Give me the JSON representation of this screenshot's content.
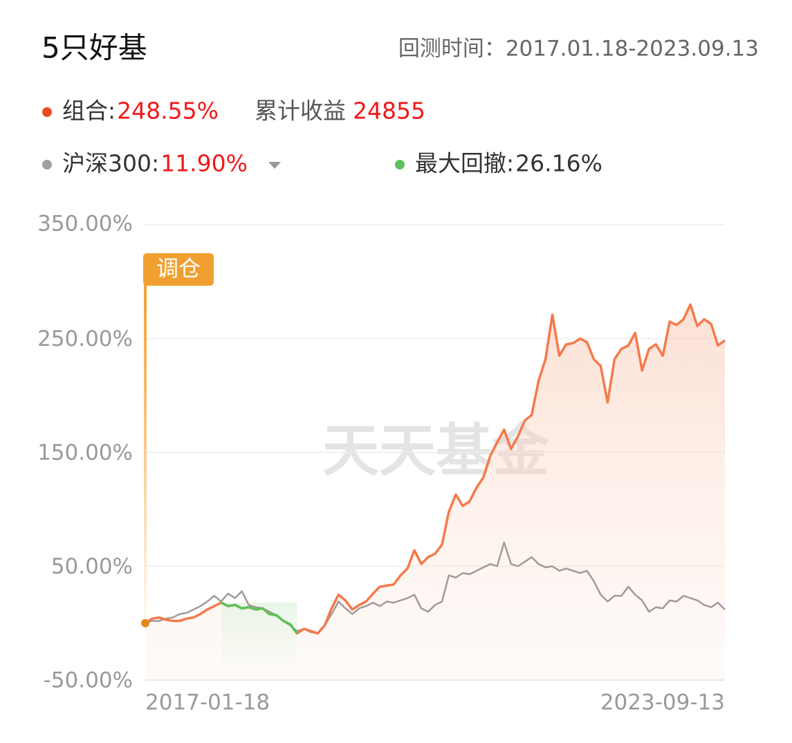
{
  "header": {
    "title": "5只好基",
    "backtest": "回测时间：2017.01.18-2023.09.13",
    "cumulative_label": "累计收益",
    "cumulative_value": "24855"
  },
  "chart_data": {
    "type": "line",
    "rebalance_label": "调仓",
    "watermark": "天天基金",
    "categories": [
      "2017-01-18",
      null,
      null,
      null,
      null,
      null,
      null,
      null,
      null,
      null,
      null,
      null,
      null,
      null,
      null,
      null,
      null,
      null,
      null,
      null,
      null,
      null,
      null,
      null,
      null,
      null,
      null,
      null,
      null,
      null,
      null,
      null,
      null,
      null,
      null,
      null,
      null,
      null,
      null,
      null,
      null,
      null,
      null,
      null,
      null,
      null,
      null,
      null,
      null,
      null,
      null,
      null,
      null,
      null,
      null,
      null,
      null,
      null,
      null,
      null,
      null,
      null,
      null,
      null,
      null,
      null,
      null,
      null,
      null,
      null,
      null,
      null,
      null,
      null,
      null,
      null,
      null,
      null,
      null,
      null,
      null,
      null,
      null,
      null,
      "2023-09-13"
    ],
    "ylim": [
      -50,
      350
    ],
    "yticks": [
      {
        "value": -50,
        "label": "-50.00%"
      },
      {
        "value": 50,
        "label": "50.00%"
      },
      {
        "value": 150,
        "label": "150.00%"
      },
      {
        "value": 250,
        "label": "250.00%"
      },
      {
        "value": 350,
        "label": "350.00%"
      }
    ],
    "grid": true,
    "series": [
      {
        "name": "组合:",
        "summary": "248.55%",
        "color": "#f5794a",
        "values": [
          0,
          4,
          5,
          3,
          2,
          2,
          4,
          5,
          8,
          12,
          15,
          18,
          15,
          16,
          13,
          14,
          12,
          13,
          8,
          7,
          2,
          -1,
          -9,
          -5,
          -7,
          -9,
          -2,
          13,
          25,
          20,
          12,
          16,
          19,
          26,
          32,
          33,
          34,
          42,
          48,
          64,
          52,
          58,
          61,
          69,
          98,
          113,
          103,
          107,
          119,
          128,
          147,
          159,
          170,
          153,
          164,
          178,
          183,
          213,
          232,
          271,
          235,
          245,
          246,
          250,
          247,
          232,
          226,
          194,
          232,
          241,
          244,
          255,
          222,
          241,
          245,
          235,
          265,
          262,
          267,
          280,
          261,
          267,
          263,
          244,
          248.55
        ]
      },
      {
        "name": "沪深300:",
        "summary": "11.90%",
        "color": "#a09a98",
        "values": [
          0,
          2,
          2,
          4,
          5,
          8,
          9,
          12,
          15,
          19,
          24,
          19,
          26,
          22,
          28,
          16,
          14,
          13,
          10,
          7,
          2,
          -2,
          -7,
          -5,
          -8,
          -9,
          -2,
          8,
          19,
          13,
          8,
          13,
          15,
          18,
          15,
          19,
          18,
          20,
          22,
          25,
          13,
          10,
          16,
          19,
          42,
          40,
          44,
          43,
          46,
          49,
          52,
          50,
          71,
          52,
          50,
          54,
          58,
          52,
          49,
          50,
          46,
          48,
          46,
          44,
          46,
          37,
          25,
          19,
          24,
          24,
          32,
          25,
          20,
          10,
          14,
          13,
          20,
          19,
          24,
          22,
          20,
          16,
          14,
          18,
          11.9
        ]
      },
      {
        "name": "最大回撤:",
        "summary": "26.16%",
        "color": "#5cc15a",
        "values": [
          null,
          null,
          null,
          null,
          null,
          null,
          null,
          null,
          null,
          null,
          null,
          18,
          15,
          16,
          13,
          14,
          12,
          13,
          8,
          7,
          2,
          -1,
          -9,
          null,
          null,
          null,
          null,
          null,
          null,
          null,
          null,
          null,
          null,
          null,
          null,
          null,
          null,
          null,
          null,
          null,
          null,
          null,
          null,
          null,
          null,
          null,
          null,
          null,
          null,
          null,
          null,
          null,
          null,
          null,
          null,
          null,
          null,
          null,
          null,
          null,
          null,
          null,
          null,
          null,
          null,
          null,
          null,
          null,
          null,
          null,
          null,
          null,
          null,
          null,
          null,
          null,
          null,
          null,
          null,
          null,
          null,
          null,
          null,
          null,
          null
        ]
      }
    ]
  }
}
